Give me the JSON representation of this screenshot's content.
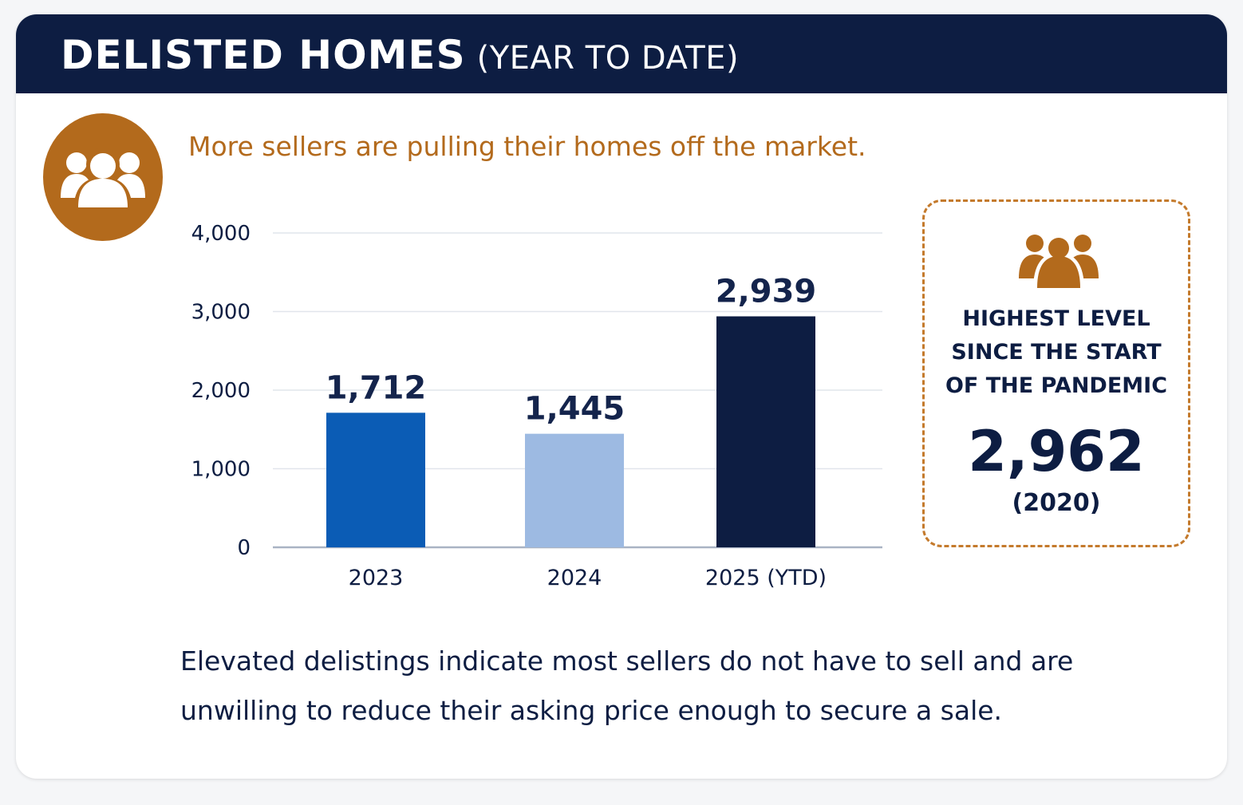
{
  "header": {
    "title_main": "DELISTED HOMES",
    "title_sub": "(YEAR TO DATE)"
  },
  "subtitle": "More sellers are pulling their homes off the market.",
  "icons": {
    "badge": "people-group-icon",
    "callout": "people-group-icon"
  },
  "colors": {
    "header_bg": "#0d1d42",
    "accent": "#b36a1c",
    "bar_2023": "#0b5cb5",
    "bar_2024": "#9dbae2",
    "bar_2025": "#0d1d42"
  },
  "chart_data": {
    "type": "bar",
    "categories": [
      "2023",
      "2024",
      "2025 (YTD)"
    ],
    "values": [
      1712,
      1445,
      2939
    ],
    "value_labels": [
      "1,712",
      "1,445",
      "2,939"
    ],
    "ylim": [
      0,
      4000
    ],
    "yticks": [
      0,
      1000,
      2000,
      3000,
      4000
    ],
    "ytick_labels": [
      "0",
      "1,000",
      "2,000",
      "3,000",
      "4,000"
    ],
    "grid": true,
    "xlabel": "",
    "ylabel": ""
  },
  "callout": {
    "lines": [
      "HIGHEST LEVEL",
      "SINCE THE START",
      "OF THE PANDEMIC"
    ],
    "value": "2,962",
    "year": "(2020)"
  },
  "footnote": {
    "lines": [
      "Elevated delistings indicate most sellers do not have to sell and are",
      "unwilling to reduce their asking price enough to secure a sale."
    ]
  }
}
